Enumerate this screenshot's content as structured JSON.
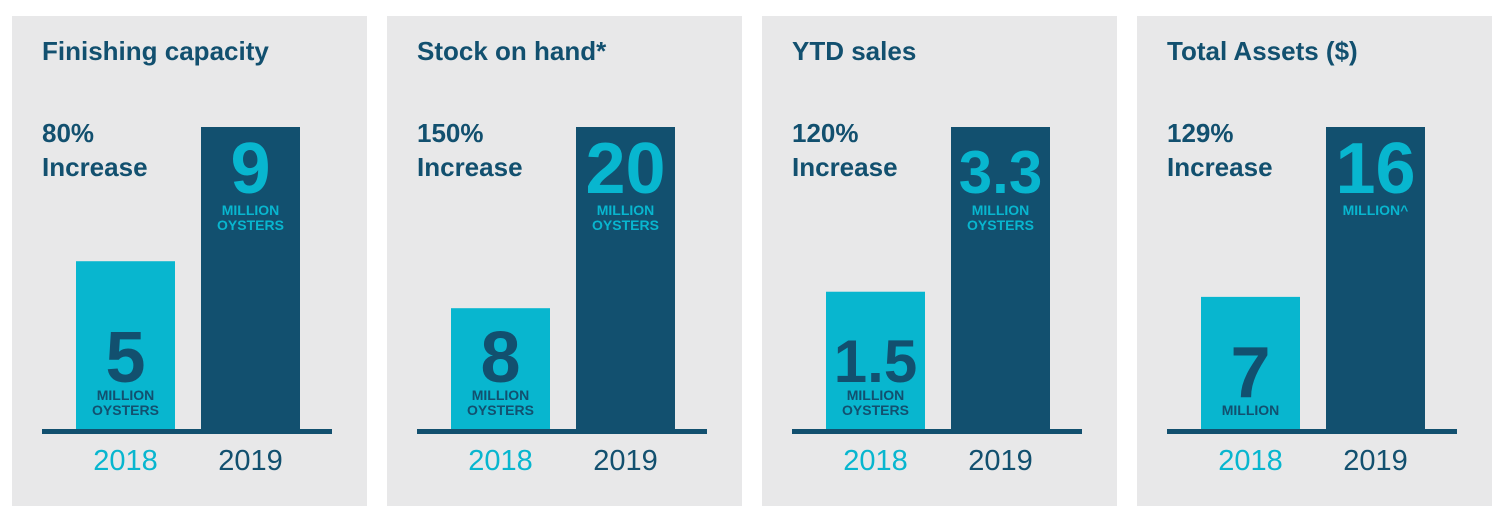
{
  "colors": {
    "panel_bg": "#e8e8e9",
    "bar_2018": "#08b6cf",
    "bar_2019": "#12506f",
    "baseline": "#12506f",
    "title_text": "#12506f",
    "year_2018_text": "#08b6cf",
    "year_2019_text": "#12506f",
    "label_on_2018": "#12506f",
    "label_on_2019_number": "#08b6cf",
    "label_on_2019_sub": "#08b6cf"
  },
  "panels": [
    {
      "title": "Finishing capacity",
      "pct": "80%",
      "increase": "Increase"
    },
    {
      "title": "Stock on hand*",
      "pct": "150%",
      "increase": "Increase"
    },
    {
      "title": "YTD sales",
      "pct": "120%",
      "increase": "Increase"
    },
    {
      "title": "Total Assets ($)",
      "pct": "129%",
      "increase": "Increase"
    }
  ],
  "chart_data": [
    {
      "type": "bar",
      "categories": [
        "2018",
        "2019"
      ],
      "values": [
        5,
        9
      ],
      "bar_labels": [
        "5",
        "9"
      ],
      "bar_sublabels": [
        [
          "MILLION",
          "OYSTERS"
        ],
        [
          "MILLION",
          "OYSTERS"
        ]
      ]
    },
    {
      "type": "bar",
      "categories": [
        "2018",
        "2019"
      ],
      "values": [
        8,
        20
      ],
      "bar_labels": [
        "8",
        "20"
      ],
      "bar_sublabels": [
        [
          "MILLION",
          "OYSTERS"
        ],
        [
          "MILLION",
          "OYSTERS"
        ]
      ]
    },
    {
      "type": "bar",
      "categories": [
        "2018",
        "2019"
      ],
      "values": [
        1.5,
        3.3
      ],
      "bar_labels": [
        "1.5",
        "3.3"
      ],
      "bar_sublabels": [
        [
          "MILLION",
          "OYSTERS"
        ],
        [
          "MILLION",
          "OYSTERS"
        ]
      ]
    },
    {
      "type": "bar",
      "categories": [
        "2018",
        "2019"
      ],
      "values": [
        7,
        16
      ],
      "bar_labels": [
        "7",
        "16"
      ],
      "bar_sublabels": [
        [
          "MILLION"
        ],
        [
          "MILLION^"
        ]
      ]
    }
  ]
}
